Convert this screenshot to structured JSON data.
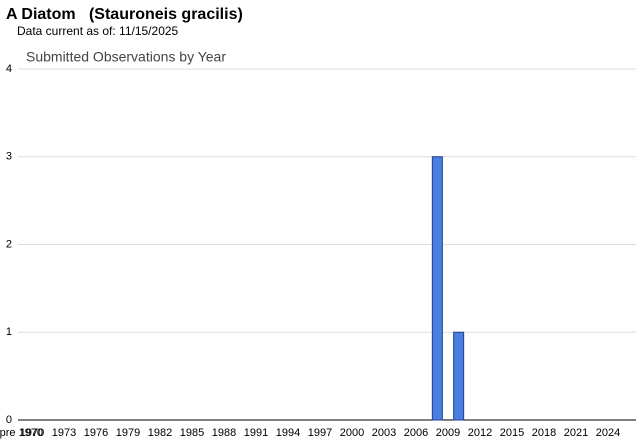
{
  "header": {
    "title": "A Diatom   (Stauroneis gracilis)",
    "subtitle": "Data current as of: 11/15/2025"
  },
  "chart_data": {
    "type": "bar",
    "title": "Submitted Observations by Year",
    "categories": [
      "pre 1970",
      "1970",
      null,
      null,
      "1973",
      null,
      null,
      "1976",
      null,
      null,
      "1979",
      null,
      null,
      "1982",
      null,
      null,
      "1985",
      null,
      null,
      "1988",
      null,
      null,
      "1991",
      null,
      null,
      "1994",
      null,
      null,
      "1997",
      null,
      null,
      "2000",
      null,
      null,
      "2003",
      null,
      null,
      "2006",
      null,
      null,
      "2009",
      null,
      null,
      "2012",
      null,
      null,
      "2015",
      null,
      null,
      "2018",
      null,
      null,
      "2021",
      null,
      null,
      "2024",
      null
    ],
    "values": [
      0,
      0,
      0,
      0,
      0,
      0,
      0,
      0,
      0,
      0,
      0,
      0,
      0,
      0,
      0,
      0,
      0,
      0,
      0,
      0,
      0,
      0,
      0,
      0,
      0,
      0,
      0,
      0,
      0,
      0,
      0,
      0,
      0,
      0,
      0,
      0,
      0,
      0,
      0,
      3,
      0,
      1,
      0,
      0,
      0,
      0,
      0,
      0,
      0,
      0,
      0,
      0,
      0,
      0,
      0,
      0,
      0
    ],
    "color": "#4a80e2",
    "ylim": [
      0,
      4
    ],
    "yticks": [
      0,
      1,
      2,
      3,
      4
    ],
    "grid": true
  }
}
